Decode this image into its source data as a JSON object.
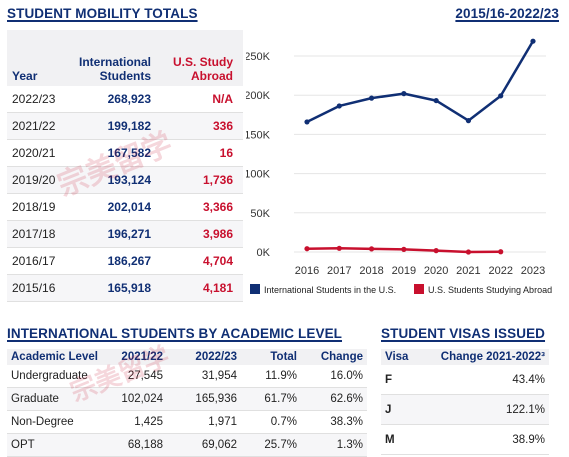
{
  "header": {
    "title": "STUDENT MOBILITY TOTALS",
    "period": "2015/16-2022/23"
  },
  "mobility_table": {
    "col_year": "Year",
    "col_intl": [
      "International",
      "Students"
    ],
    "col_abroad": [
      "U.S. Study",
      "Abroad"
    ],
    "rows": [
      {
        "year": "2022/23",
        "intl": "268,923",
        "abroad": "N/A"
      },
      {
        "year": "2021/22",
        "intl": "199,182",
        "abroad": "336"
      },
      {
        "year": "2020/21",
        "intl": "167,582",
        "abroad": "16"
      },
      {
        "year": "2019/20",
        "intl": "193,124",
        "abroad": "1,736"
      },
      {
        "year": "2018/19",
        "intl": "202,014",
        "abroad": "3,366"
      },
      {
        "year": "2017/18",
        "intl": "196,271",
        "abroad": "3,986"
      },
      {
        "year": "2016/17",
        "intl": "186,267",
        "abroad": "4,704"
      },
      {
        "year": "2015/16",
        "intl": "165,918",
        "abroad": "4,181"
      }
    ]
  },
  "chart_data": {
    "type": "line",
    "x": [
      "2016",
      "2017",
      "2018",
      "2019",
      "2020",
      "2021",
      "2022",
      "2023"
    ],
    "y_ticks": [
      "0K",
      "50K",
      "100K",
      "150K",
      "200K",
      "250K"
    ],
    "ylim": [
      0,
      250000
    ],
    "grid": true,
    "legend_position": "bottom",
    "series": [
      {
        "name": "International Students in the U.S.",
        "color": "#102f74",
        "values": [
          165918,
          186267,
          196271,
          202014,
          193124,
          167582,
          199182,
          268923
        ]
      },
      {
        "name": "U.S. Students Studying Abroad",
        "color": "#c8102e",
        "values": [
          4181,
          4704,
          3986,
          3366,
          1736,
          16,
          336,
          null
        ]
      }
    ]
  },
  "academic": {
    "title": "INTERNATIONAL STUDENTS BY ACADEMIC LEVEL",
    "headers": [
      "Academic Level",
      "2021/22",
      "2022/23",
      "Total",
      "Change"
    ],
    "rows": [
      [
        "Undergraduate",
        "27,545",
        "31,954",
        "11.9%",
        "16.0%"
      ],
      [
        "Graduate",
        "102,024",
        "165,936",
        "61.7%",
        "62.6%"
      ],
      [
        "Non-Degree",
        "1,425",
        "1,971",
        "0.7%",
        "38.3%"
      ],
      [
        "OPT",
        "68,188",
        "69,062",
        "25.7%",
        "1.3%"
      ]
    ]
  },
  "visas": {
    "title": "STUDENT VISAS ISSUED",
    "headers": [
      "Visa",
      "Change 2021-2022³"
    ],
    "rows": [
      [
        "F",
        "43.4%"
      ],
      [
        "J",
        "122.1%"
      ],
      [
        "M",
        "38.9%"
      ]
    ]
  },
  "watermark": {
    "text": "宗美留学"
  }
}
